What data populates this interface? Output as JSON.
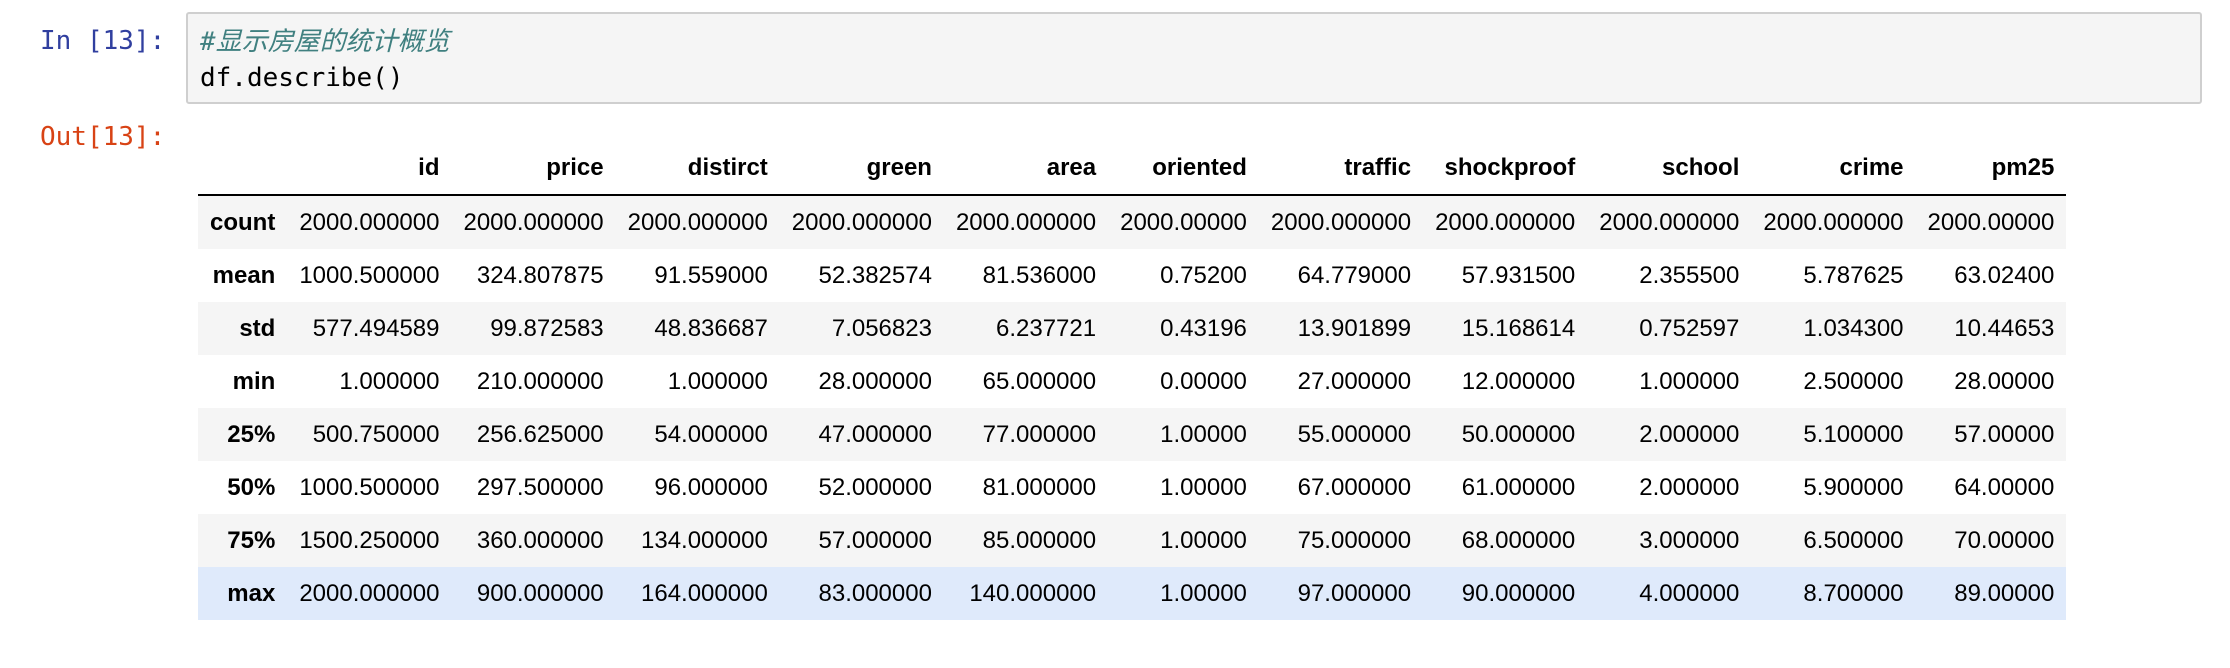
{
  "cell": {
    "in_prompt": "In [13]:",
    "out_prompt": "Out[13]:",
    "code": [
      "#显示房屋的统计概览",
      "df.describe()"
    ]
  },
  "table": {
    "columns": [
      "id",
      "price",
      "distirct",
      "green",
      "area",
      "oriented",
      "traffic",
      "shockproof",
      "school",
      "crime",
      "pm25"
    ],
    "rows": [
      {
        "label": "count",
        "values": [
          "2000.000000",
          "2000.000000",
          "2000.000000",
          "2000.000000",
          "2000.000000",
          "2000.00000",
          "2000.000000",
          "2000.000000",
          "2000.000000",
          "2000.000000",
          "2000.00000"
        ]
      },
      {
        "label": "mean",
        "values": [
          "1000.500000",
          "324.807875",
          "91.559000",
          "52.382574",
          "81.536000",
          "0.75200",
          "64.779000",
          "57.931500",
          "2.355500",
          "5.787625",
          "63.02400"
        ]
      },
      {
        "label": "std",
        "values": [
          "577.494589",
          "99.872583",
          "48.836687",
          "7.056823",
          "6.237721",
          "0.43196",
          "13.901899",
          "15.168614",
          "0.752597",
          "1.034300",
          "10.44653"
        ]
      },
      {
        "label": "min",
        "values": [
          "1.000000",
          "210.000000",
          "1.000000",
          "28.000000",
          "65.000000",
          "0.00000",
          "27.000000",
          "12.000000",
          "1.000000",
          "2.500000",
          "28.00000"
        ]
      },
      {
        "label": "25%",
        "values": [
          "500.750000",
          "256.625000",
          "54.000000",
          "47.000000",
          "77.000000",
          "1.00000",
          "55.000000",
          "50.000000",
          "2.000000",
          "5.100000",
          "57.00000"
        ]
      },
      {
        "label": "50%",
        "values": [
          "1000.500000",
          "297.500000",
          "96.000000",
          "52.000000",
          "81.000000",
          "1.00000",
          "67.000000",
          "61.000000",
          "2.000000",
          "5.900000",
          "64.00000"
        ]
      },
      {
        "label": "75%",
        "values": [
          "1500.250000",
          "360.000000",
          "134.000000",
          "57.000000",
          "85.000000",
          "1.00000",
          "75.000000",
          "68.000000",
          "3.000000",
          "6.500000",
          "70.00000"
        ]
      },
      {
        "label": "max",
        "values": [
          "2000.000000",
          "900.000000",
          "164.000000",
          "83.000000",
          "140.000000",
          "1.00000",
          "97.000000",
          "90.000000",
          "4.000000",
          "8.700000",
          "89.00000"
        ]
      }
    ],
    "highlighted_row": 7
  },
  "colors": {
    "in_prompt": "#303f9f",
    "out_prompt": "#d84315",
    "comment": "#408080",
    "row_stripe": "#f5f5f5",
    "row_hover": "#dfeafb"
  }
}
